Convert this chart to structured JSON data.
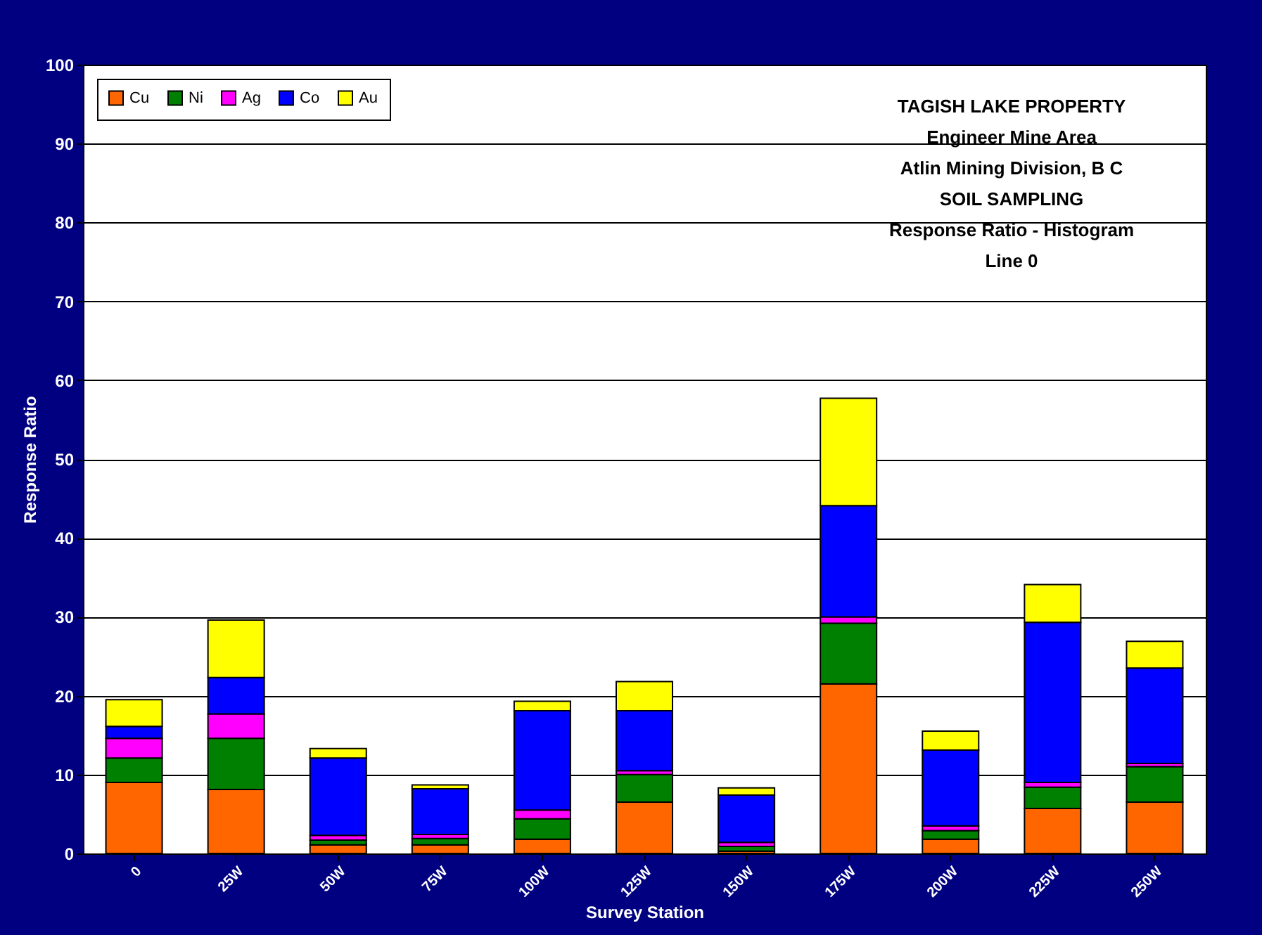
{
  "chart_data": {
    "type": "bar",
    "stacked": true,
    "annotations": [
      "TAGISH LAKE PROPERTY",
      "Engineer Mine Area",
      "Atlin Mining Division, B C",
      "SOIL SAMPLING",
      "Response Ratio - Histogram",
      "Line 0"
    ],
    "xlabel": "Survey Station",
    "ylabel": "Response Ratio",
    "categories": [
      "0",
      "25W",
      "50W",
      "75W",
      "100W",
      "125W",
      "150W",
      "175W",
      "200W",
      "225W",
      "250W"
    ],
    "series": [
      {
        "name": "Cu",
        "color": "#ff6600",
        "values": [
          9.0,
          8.1,
          1.1,
          1.1,
          1.8,
          6.5,
          0.3,
          21.5,
          1.8,
          5.7,
          6.5
        ]
      },
      {
        "name": "Ni",
        "color": "#008000",
        "values": [
          3.1,
          6.5,
          0.6,
          0.8,
          2.6,
          3.5,
          0.6,
          7.7,
          1.1,
          2.7,
          4.5
        ]
      },
      {
        "name": "Ag",
        "color": "#ff00ff",
        "values": [
          2.5,
          3.1,
          0.6,
          0.5,
          1.1,
          0.5,
          0.5,
          0.8,
          0.6,
          0.6,
          0.4
        ]
      },
      {
        "name": "Co",
        "color": "#0000ff",
        "values": [
          1.5,
          4.6,
          9.8,
          5.8,
          12.6,
          7.6,
          6.0,
          14.1,
          9.6,
          20.3,
          12.1
        ]
      },
      {
        "name": "Au",
        "color": "#ffff00",
        "values": [
          3.4,
          7.3,
          1.2,
          0.5,
          1.2,
          3.7,
          0.9,
          13.6,
          2.4,
          4.8,
          3.4
        ]
      }
    ],
    "ylim": [
      0,
      100
    ],
    "yticks": [
      0,
      10,
      20,
      30,
      40,
      50,
      60,
      70,
      80,
      90,
      100
    ],
    "grid": "y",
    "legend": "top left"
  }
}
